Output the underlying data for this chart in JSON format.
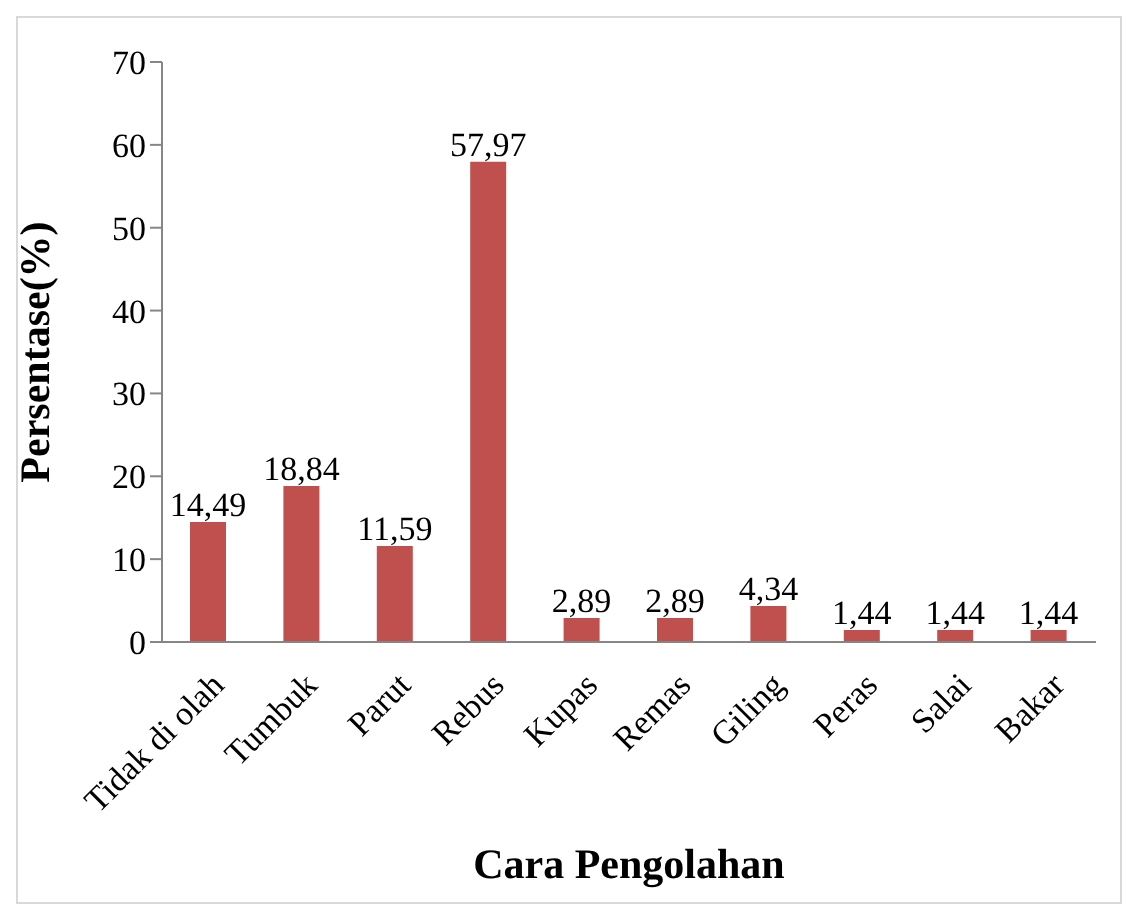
{
  "chart_data": {
    "type": "bar",
    "xlabel": "Cara Pengolahan",
    "ylabel": "Persentase(%)",
    "categories": [
      "Tidak di olah",
      "Tumbuk",
      "Parut",
      "Rebus",
      "Kupas",
      "Remas",
      "Giling",
      "Peras",
      "Salai",
      "Bakar"
    ],
    "values": [
      14.49,
      18.84,
      11.59,
      57.97,
      2.89,
      2.89,
      4.34,
      1.44,
      1.44,
      1.44
    ],
    "value_labels": [
      "14,49",
      "18,84",
      "11,59",
      "57,97",
      "2,89",
      "2,89",
      "4,34",
      "1,44",
      "1,44",
      "1,44"
    ],
    "color": "#c0504d",
    "ylim": [
      0,
      70
    ],
    "yticks": [
      0,
      10,
      20,
      30,
      40,
      50,
      60,
      70
    ],
    "grid": false,
    "legend": false
  }
}
